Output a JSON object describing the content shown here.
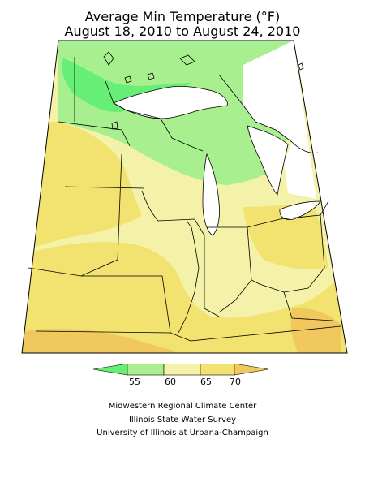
{
  "title": {
    "line1": "Average Min Temperature (°F)",
    "line2": "August 18, 2010 to August 24, 2010"
  },
  "legend": {
    "ticks": [
      "55",
      "60",
      "65",
      "70"
    ],
    "colors": [
      "#66ee77",
      "#a8f08f",
      "#f4f2a8",
      "#f2e270",
      "#f0c85e"
    ],
    "ranges": [
      "<55",
      "55-60",
      "60-65",
      "65-70",
      ">70"
    ]
  },
  "credits": [
    "Midwestern Regional Climate Center",
    "Illinois State Water Survey",
    "University of Illinois at Urbana-Champaign"
  ]
}
